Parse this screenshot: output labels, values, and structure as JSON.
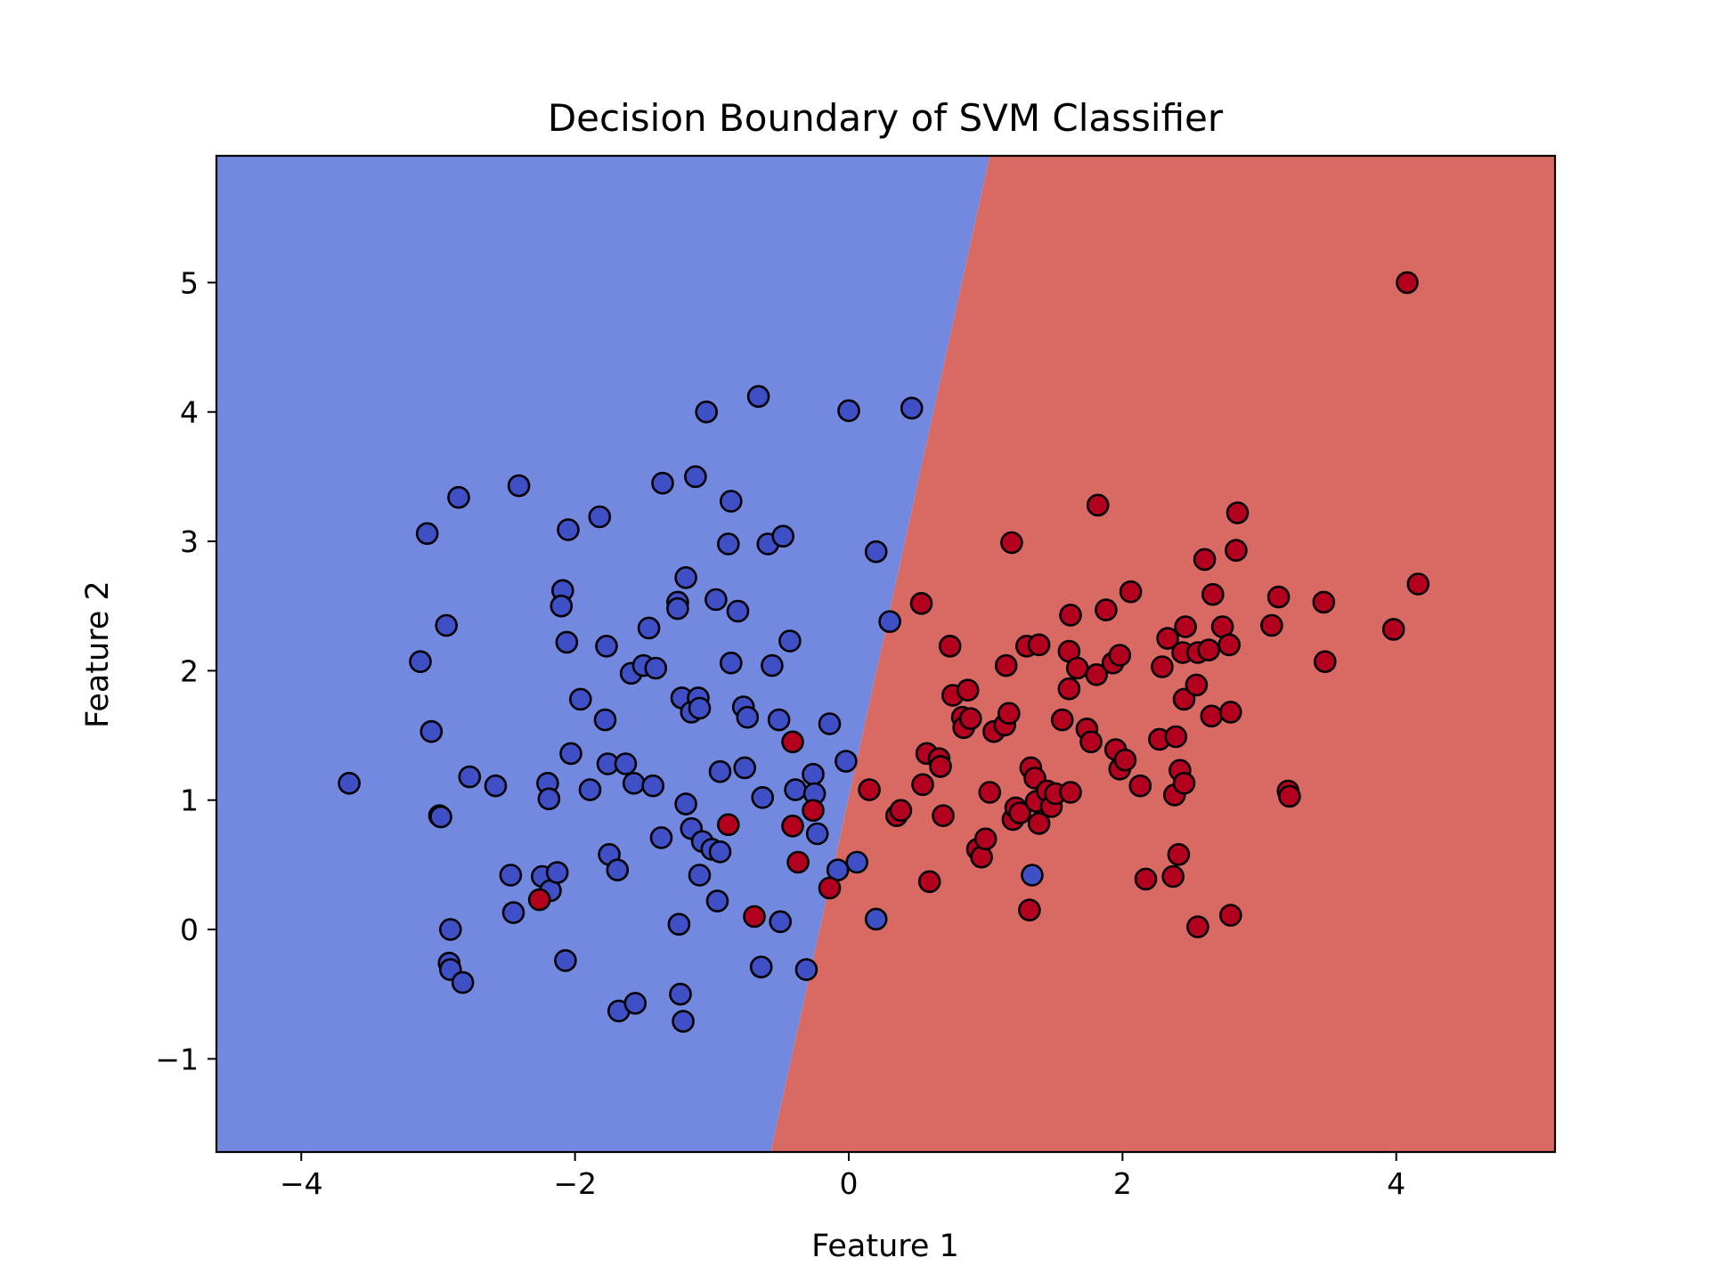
{
  "chart_data": {
    "type": "scatter",
    "title": "Decision Boundary of SVM Classifier",
    "xlabel": "Feature 1",
    "ylabel": "Feature 2",
    "xlim": [
      -4.62,
      5.16
    ],
    "ylim": [
      -1.72,
      5.98
    ],
    "xticks": [
      -4,
      -2,
      0,
      2,
      4
    ],
    "yticks": [
      -1,
      0,
      1,
      2,
      3,
      4,
      5
    ],
    "grid": false,
    "legend": "none",
    "colors": {
      "region_class_0": "#7389e0",
      "region_class_1": "#d96963",
      "point_class_0": "#3f4fc5",
      "point_class_1": "#b3001f",
      "edge": "#000000"
    },
    "boundary": {
      "points": [
        [
          -0.57,
          -1.72
        ],
        [
          1.03,
          5.98
        ]
      ]
    },
    "series": [
      {
        "class": 0,
        "points": [
          [
            -3.65,
            1.13
          ],
          [
            -3.13,
            2.07
          ],
          [
            -3.08,
            3.06
          ],
          [
            -3.05,
            1.53
          ],
          [
            -2.99,
            0.88
          ],
          [
            -2.98,
            0.87
          ],
          [
            -2.94,
            2.35
          ],
          [
            -2.92,
            -0.26
          ],
          [
            -2.91,
            0.0
          ],
          [
            -2.91,
            -0.31
          ],
          [
            -2.85,
            3.34
          ],
          [
            -2.82,
            -0.41
          ],
          [
            -2.77,
            1.18
          ],
          [
            -2.58,
            1.11
          ],
          [
            -2.47,
            0.42
          ],
          [
            -2.45,
            0.13
          ],
          [
            -2.41,
            3.43
          ],
          [
            -2.24,
            0.41
          ],
          [
            -2.2,
            1.13
          ],
          [
            -2.19,
            1.01
          ],
          [
            -2.18,
            0.3
          ],
          [
            -2.13,
            0.44
          ],
          [
            -2.09,
            2.62
          ],
          [
            -2.1,
            2.5
          ],
          [
            -2.06,
            2.22
          ],
          [
            -2.05,
            3.09
          ],
          [
            -2.03,
            1.36
          ],
          [
            -2.07,
            -0.24
          ],
          [
            -1.96,
            1.78
          ],
          [
            -1.89,
            1.08
          ],
          [
            -1.82,
            3.19
          ],
          [
            -1.77,
            2.19
          ],
          [
            -1.78,
            1.62
          ],
          [
            -1.76,
            1.28
          ],
          [
            -1.75,
            0.58
          ],
          [
            -1.69,
            0.46
          ],
          [
            -1.68,
            -0.63
          ],
          [
            -1.63,
            1.28
          ],
          [
            -1.59,
            1.98
          ],
          [
            -1.57,
            1.13
          ],
          [
            -1.56,
            -0.57
          ],
          [
            -1.5,
            2.04
          ],
          [
            -1.46,
            2.33
          ],
          [
            -1.43,
            1.11
          ],
          [
            -1.41,
            2.02
          ],
          [
            -1.37,
            0.71
          ],
          [
            -1.36,
            3.45
          ],
          [
            -1.24,
            0.04
          ],
          [
            -1.23,
            -0.5
          ],
          [
            -1.25,
            2.53
          ],
          [
            -1.25,
            2.48
          ],
          [
            -1.22,
            1.79
          ],
          [
            -1.21,
            -0.71
          ],
          [
            -1.19,
            2.72
          ],
          [
            -1.19,
            0.97
          ],
          [
            -1.15,
            1.68
          ],
          [
            -1.15,
            0.78
          ],
          [
            -1.12,
            3.5
          ],
          [
            -1.1,
            1.79
          ],
          [
            -1.09,
            1.71
          ],
          [
            -1.09,
            0.42
          ],
          [
            -1.07,
            0.68
          ],
          [
            -1.04,
            4.0
          ],
          [
            -1.0,
            0.62
          ],
          [
            -0.97,
            2.55
          ],
          [
            -0.96,
            0.22
          ],
          [
            -0.94,
            0.6
          ],
          [
            -0.94,
            1.22
          ],
          [
            -0.88,
            2.98
          ],
          [
            -0.86,
            3.31
          ],
          [
            -0.86,
            2.06
          ],
          [
            -0.81,
            2.46
          ],
          [
            -0.77,
            1.72
          ],
          [
            -0.76,
            1.25
          ],
          [
            -0.74,
            1.64
          ],
          [
            -0.66,
            4.12
          ],
          [
            -0.63,
            1.02
          ],
          [
            -0.64,
            -0.29
          ],
          [
            -0.59,
            2.98
          ],
          [
            -0.56,
            2.04
          ],
          [
            -0.51,
            1.62
          ],
          [
            -0.5,
            0.06
          ],
          [
            -0.48,
            3.04
          ],
          [
            -0.43,
            2.23
          ],
          [
            -0.39,
            1.08
          ],
          [
            -0.31,
            -0.31
          ],
          [
            -0.26,
            1.2
          ],
          [
            -0.25,
            1.05
          ],
          [
            -0.23,
            0.74
          ],
          [
            -0.14,
            1.59
          ],
          [
            -0.08,
            0.46
          ],
          [
            -0.02,
            1.3
          ],
          [
            0.0,
            4.01
          ],
          [
            0.06,
            0.52
          ],
          [
            0.2,
            2.92
          ],
          [
            0.2,
            0.08
          ],
          [
            0.3,
            2.38
          ],
          [
            0.46,
            4.03
          ],
          [
            1.34,
            0.42
          ]
        ]
      },
      {
        "class": 1,
        "points": [
          [
            -2.26,
            0.23
          ],
          [
            -0.88,
            0.81
          ],
          [
            -0.69,
            0.1
          ],
          [
            -0.41,
            1.45
          ],
          [
            -0.41,
            0.8
          ],
          [
            -0.37,
            0.52
          ],
          [
            -0.26,
            0.92
          ],
          [
            -0.14,
            0.32
          ],
          [
            0.15,
            1.08
          ],
          [
            0.35,
            0.88
          ],
          [
            0.38,
            0.92
          ],
          [
            0.53,
            2.52
          ],
          [
            0.54,
            1.12
          ],
          [
            0.57,
            1.36
          ],
          [
            0.59,
            0.37
          ],
          [
            0.66,
            1.32
          ],
          [
            0.67,
            1.26
          ],
          [
            0.69,
            0.88
          ],
          [
            0.74,
            2.19
          ],
          [
            0.76,
            1.81
          ],
          [
            0.83,
            1.64
          ],
          [
            0.84,
            1.56
          ],
          [
            0.87,
            1.85
          ],
          [
            0.89,
            1.63
          ],
          [
            0.94,
            0.62
          ],
          [
            0.97,
            0.56
          ],
          [
            1.0,
            0.7
          ],
          [
            1.03,
            1.06
          ],
          [
            1.06,
            1.53
          ],
          [
            1.14,
            1.58
          ],
          [
            1.15,
            2.04
          ],
          [
            1.17,
            1.67
          ],
          [
            1.19,
            2.99
          ],
          [
            1.2,
            0.85
          ],
          [
            1.22,
            0.94
          ],
          [
            1.25,
            0.9
          ],
          [
            1.3,
            2.19
          ],
          [
            1.32,
            0.15
          ],
          [
            1.33,
            1.25
          ],
          [
            1.36,
            1.17
          ],
          [
            1.37,
            0.99
          ],
          [
            1.39,
            2.2
          ],
          [
            1.39,
            0.82
          ],
          [
            1.45,
            1.07
          ],
          [
            1.48,
            0.95
          ],
          [
            1.51,
            1.05
          ],
          [
            1.56,
            1.62
          ],
          [
            1.61,
            2.15
          ],
          [
            1.61,
            1.86
          ],
          [
            1.62,
            2.43
          ],
          [
            1.62,
            1.06
          ],
          [
            1.67,
            2.02
          ],
          [
            1.74,
            1.55
          ],
          [
            1.77,
            1.45
          ],
          [
            1.81,
            1.97
          ],
          [
            1.82,
            3.28
          ],
          [
            1.88,
            2.47
          ],
          [
            1.93,
            2.06
          ],
          [
            1.95,
            1.39
          ],
          [
            1.98,
            1.24
          ],
          [
            1.98,
            2.12
          ],
          [
            2.02,
            1.31
          ],
          [
            2.06,
            2.61
          ],
          [
            2.13,
            1.11
          ],
          [
            2.17,
            0.39
          ],
          [
            2.27,
            1.47
          ],
          [
            2.29,
            2.03
          ],
          [
            2.33,
            2.25
          ],
          [
            2.37,
            0.41
          ],
          [
            2.38,
            1.04
          ],
          [
            2.39,
            1.49
          ],
          [
            2.41,
            0.58
          ],
          [
            2.42,
            1.23
          ],
          [
            2.44,
            2.14
          ],
          [
            2.45,
            1.78
          ],
          [
            2.45,
            1.13
          ],
          [
            2.46,
            2.34
          ],
          [
            2.54,
            1.89
          ],
          [
            2.55,
            2.14
          ],
          [
            2.55,
            0.02
          ],
          [
            2.6,
            2.86
          ],
          [
            2.63,
            2.16
          ],
          [
            2.65,
            1.65
          ],
          [
            2.66,
            2.59
          ],
          [
            2.73,
            2.34
          ],
          [
            2.78,
            2.2
          ],
          [
            2.79,
            1.68
          ],
          [
            2.79,
            0.11
          ],
          [
            2.83,
            2.93
          ],
          [
            2.84,
            3.22
          ],
          [
            3.09,
            2.35
          ],
          [
            3.14,
            2.57
          ],
          [
            3.21,
            1.07
          ],
          [
            3.22,
            1.03
          ],
          [
            3.47,
            2.53
          ],
          [
            3.48,
            2.07
          ],
          [
            3.98,
            2.32
          ],
          [
            4.08,
            5.0
          ],
          [
            4.16,
            2.67
          ]
        ]
      }
    ]
  }
}
